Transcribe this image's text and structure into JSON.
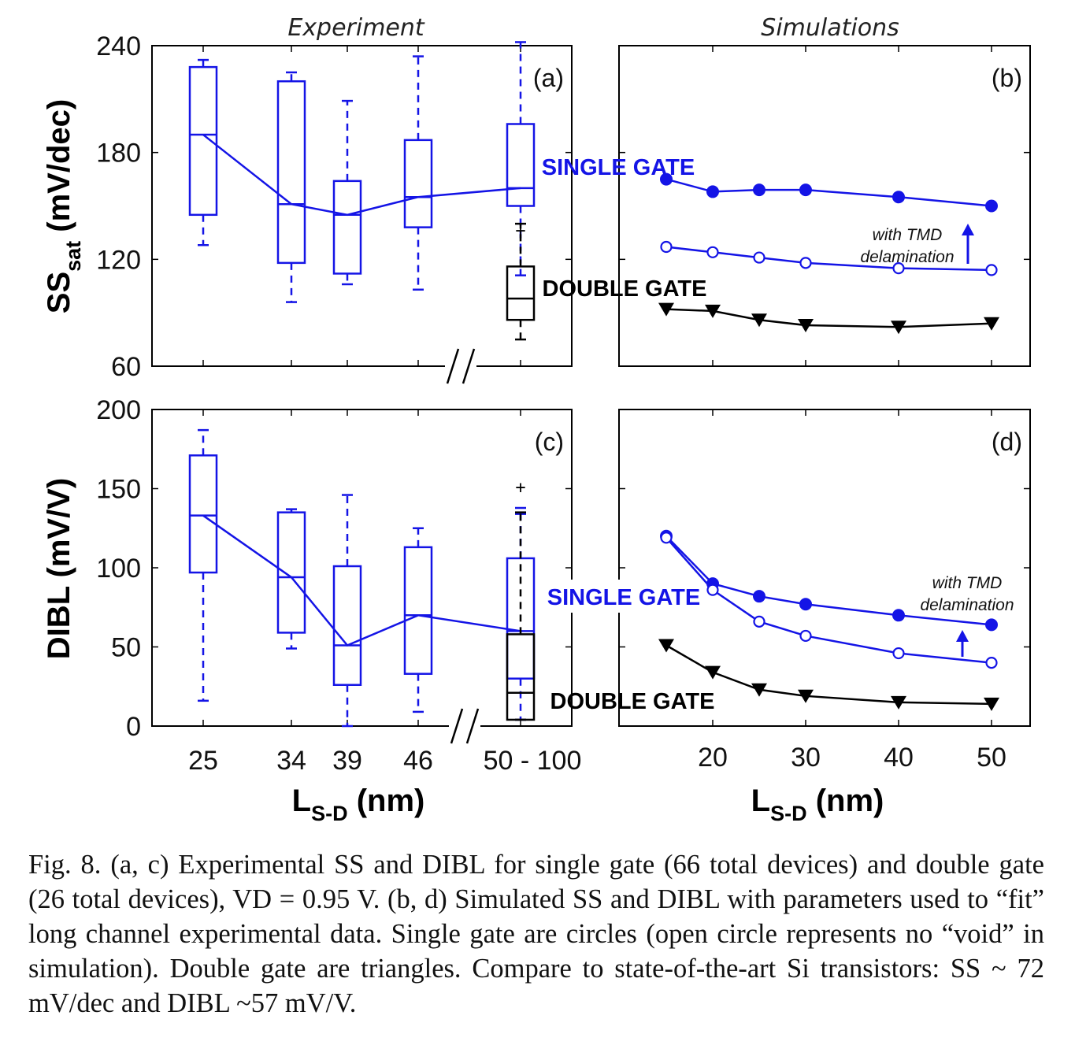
{
  "colors": {
    "single_gate": "#1414e6",
    "double_gate": "#000000"
  },
  "headers": {
    "left": "Experiment",
    "right": "Simulations"
  },
  "caption": "Fig. 8. (a, c) Experimental SS and DIBL for single gate (66 total devices) and double gate (26 total devices), VD = 0.95 V. (b, d) Simulated SS and DIBL with parameters used to “fit” long channel experimental data. Single gate are circles (open circle represents no “void” in simulation). Double gate are triangles. Compare to state-of-the-art Si transistors: SS ~ 72 mV/dec and DIBL ~57 mV/V.",
  "chart_data": [
    {
      "panel": "(a)",
      "type": "boxplot",
      "ylabel_main": "SS",
      "ylabel_sub": "sat",
      "ylabel_unit": " (mV/dec)",
      "ylim": [
        60,
        240
      ],
      "yticks": [
        60,
        120,
        180,
        240
      ],
      "categories": [
        "25",
        "34",
        "39",
        "46",
        "50 - 100"
      ],
      "single_gate": {
        "label": "SINGLE GATE",
        "boxes": [
          {
            "category": "25",
            "whisker_low": 128,
            "q1": 145,
            "median": 190,
            "q3": 228,
            "whisker_high": 232
          },
          {
            "category": "34",
            "whisker_low": 96,
            "q1": 118,
            "median": 151,
            "q3": 220,
            "whisker_high": 225
          },
          {
            "category": "39",
            "whisker_low": 106,
            "q1": 112,
            "median": 145,
            "q3": 164,
            "whisker_high": 209
          },
          {
            "category": "46",
            "whisker_low": 103,
            "q1": 138,
            "median": 155,
            "q3": 187,
            "whisker_high": 234
          },
          {
            "category": "50 - 100",
            "whisker_low": 111,
            "q1": 150,
            "median": 160,
            "q3": 196,
            "whisker_high": 242
          }
        ],
        "median_line": [
          190,
          151,
          145,
          155,
          160
        ]
      },
      "double_gate": {
        "label": "DOUBLE GATE",
        "boxes": [
          {
            "category": "50 - 100",
            "whisker_low": 75,
            "q1": 86,
            "median": 98,
            "q3": 116,
            "whisker_high": 140
          }
        ]
      }
    },
    {
      "panel": "(b)",
      "type": "line",
      "ylim": [
        60,
        240
      ],
      "xlim": [
        13,
        52
      ],
      "single_gate_label": "SINGLE GATE",
      "double_gate_label": "DOUBLE GATE",
      "annotation": [
        "with TMD",
        "delamination"
      ],
      "series": [
        {
          "name": "SINGLE GATE",
          "marker": "filled-circle",
          "x": [
            15,
            20,
            25,
            30,
            40,
            50
          ],
          "y": [
            165,
            158,
            159,
            159,
            155,
            150
          ]
        },
        {
          "name": "",
          "marker": "open-circle",
          "x": [
            15,
            20,
            25,
            30,
            40,
            50
          ],
          "y": [
            127,
            124,
            121,
            118,
            115,
            114
          ]
        },
        {
          "name": "DOUBLE GATE",
          "marker": "triangle-down",
          "x": [
            15,
            20,
            25,
            30,
            40,
            50
          ],
          "y": [
            92,
            91,
            86,
            83,
            82,
            84
          ]
        }
      ]
    },
    {
      "panel": "(c)",
      "type": "boxplot",
      "ylabel": "DIBL (mV/V)",
      "ylim": [
        0,
        200
      ],
      "yticks": [
        0,
        50,
        100,
        150,
        200
      ],
      "categories": [
        "25",
        "34",
        "39",
        "46",
        "50 - 100"
      ],
      "single_gate": {
        "label": "SINGLE GATE",
        "boxes": [
          {
            "category": "25",
            "whisker_low": 16,
            "q1": 97,
            "median": 133,
            "q3": 171,
            "whisker_high": 187
          },
          {
            "category": "34",
            "whisker_low": 49,
            "q1": 59,
            "median": 94,
            "q3": 135,
            "whisker_high": 137
          },
          {
            "category": "39",
            "whisker_low": 0,
            "q1": 26,
            "median": 51,
            "q3": 101,
            "whisker_high": 146
          },
          {
            "category": "46",
            "whisker_low": 9,
            "q1": 33,
            "median": 70,
            "q3": 113,
            "whisker_high": 125
          },
          {
            "category": "50 - 100",
            "whisker_low": 4,
            "q1": 30,
            "median": 60,
            "q3": 106,
            "whisker_high": 134
          }
        ],
        "median_line": [
          133,
          94,
          51,
          70,
          60
        ]
      },
      "double_gate": {
        "label": "DOUBLE GATE",
        "boxes": [
          {
            "category": "50 - 100",
            "whisker_low": 4,
            "q1": 4,
            "median": 21,
            "q3": 58,
            "whisker_high": 135
          }
        ]
      }
    },
    {
      "panel": "(d)",
      "type": "line",
      "ylim": [
        0,
        200
      ],
      "xlim": [
        13,
        52
      ],
      "xticks": [
        "20",
        "30",
        "40",
        "50"
      ],
      "xlabel_main": "L",
      "xlabel_sub": "S-D",
      "xlabel_unit": " (nm)",
      "single_gate_label": "SINGLE GATE",
      "double_gate_label": "DOUBLE GATE",
      "annotation": [
        "with TMD",
        "delamination"
      ],
      "series": [
        {
          "name": "SINGLE GATE",
          "marker": "filled-circle",
          "x": [
            15,
            20,
            25,
            30,
            40,
            50
          ],
          "y": [
            120,
            90,
            82,
            77,
            70,
            64
          ]
        },
        {
          "name": "",
          "marker": "open-circle",
          "x": [
            15,
            20,
            25,
            30,
            40,
            50
          ],
          "y": [
            119,
            86,
            66,
            57,
            46,
            40
          ]
        },
        {
          "name": "DOUBLE GATE",
          "marker": "triangle-down",
          "x": [
            15,
            20,
            25,
            30,
            40,
            50
          ],
          "y": [
            51,
            34,
            23,
            19,
            15,
            14
          ]
        }
      ]
    }
  ]
}
